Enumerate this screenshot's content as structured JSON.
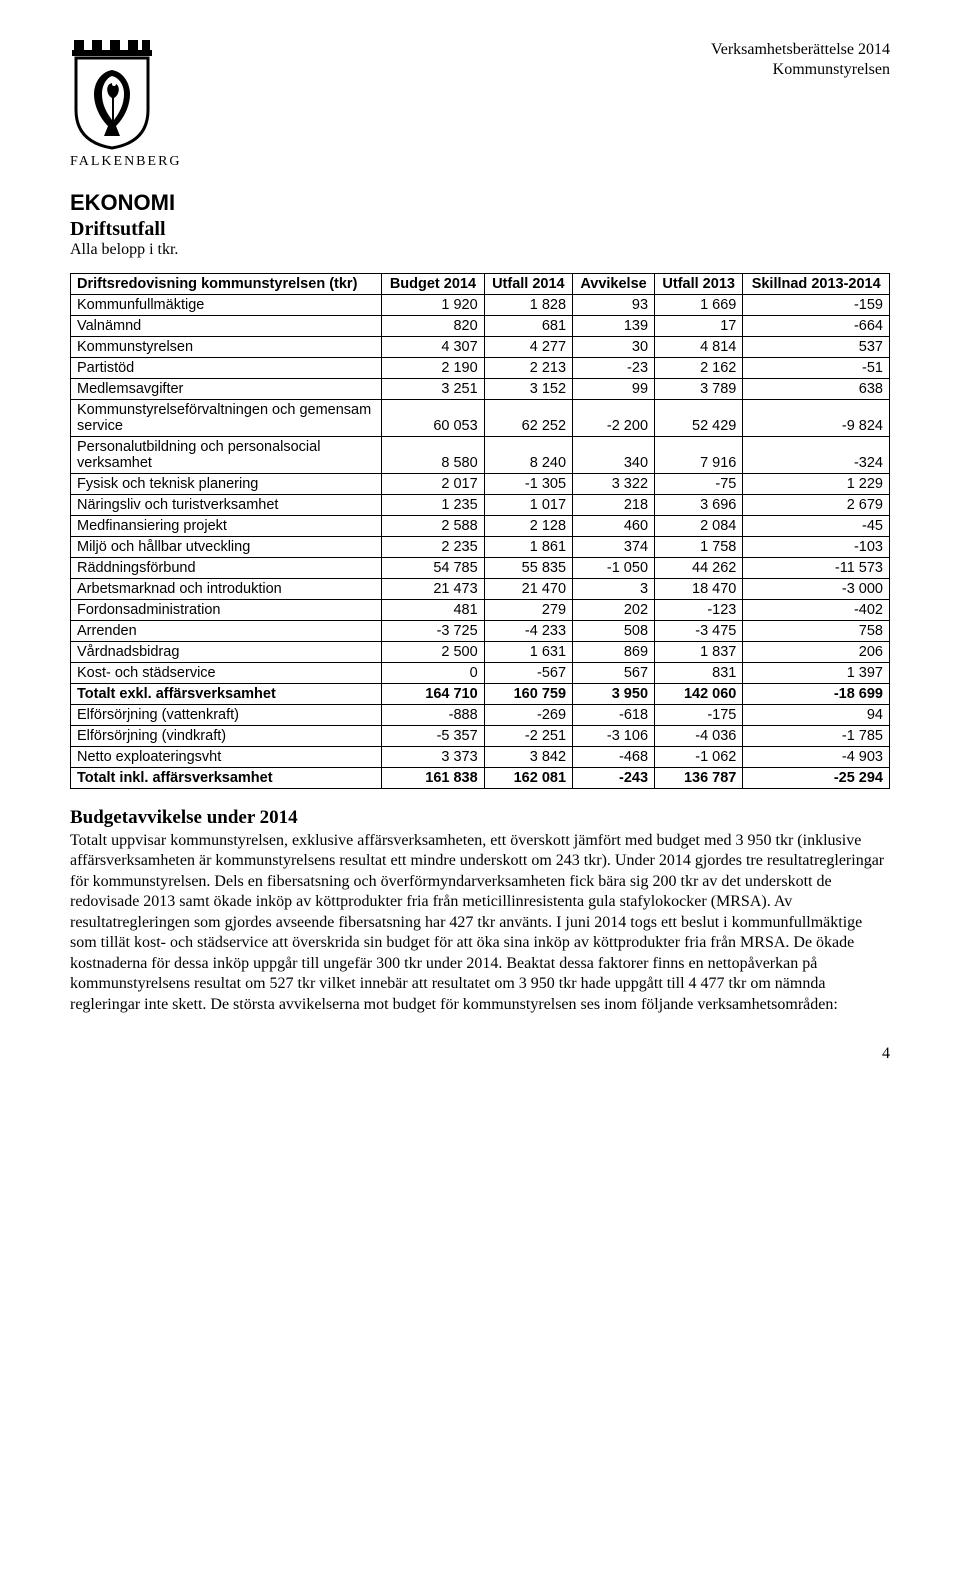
{
  "meta": {
    "doc_title_line1": "Verksamhetsberättelse 2014",
    "doc_title_line2": "Kommunstyrelsen",
    "brand": "FALKENBERG",
    "page_number": "4"
  },
  "headings": {
    "ekonomi": "EKONOMI",
    "driftsutfall": "Driftsutfall",
    "alla_belopp": "Alla belopp i tkr.",
    "budgetavvikelse": "Budgetavvikelse under 2014"
  },
  "table": {
    "header": {
      "c0": "Driftsredovisning kommunstyrelsen (tkr)",
      "c1": "Budget 2014",
      "c2": "Utfall 2014",
      "c3": "Avvikelse",
      "c4": "Utfall 2013",
      "c5": "Skillnad 2013-2014"
    },
    "rows": [
      {
        "label": "Kommunfullmäktige",
        "v": [
          "1 920",
          "1 828",
          "93",
          "1 669",
          "-159"
        ],
        "bold": false
      },
      {
        "label": "Valnämnd",
        "v": [
          "820",
          "681",
          "139",
          "17",
          "-664"
        ],
        "bold": false
      },
      {
        "label": "Kommunstyrelsen",
        "v": [
          "4 307",
          "4 277",
          "30",
          "4 814",
          "537"
        ],
        "bold": false
      },
      {
        "label": "Partistöd",
        "v": [
          "2 190",
          "2 213",
          "-23",
          "2 162",
          "-51"
        ],
        "bold": false
      },
      {
        "label": "Medlemsavgifter",
        "v": [
          "3 251",
          "3 152",
          "99",
          "3 789",
          "638"
        ],
        "bold": false
      },
      {
        "label": "Kommunstyrelseförvaltningen och gemensam service",
        "v": [
          "60 053",
          "62 252",
          "-2 200",
          "52 429",
          "-9 824"
        ],
        "bold": false
      },
      {
        "label": "Personalutbildning och personalsocial verksamhet",
        "v": [
          "8 580",
          "8 240",
          "340",
          "7 916",
          "-324"
        ],
        "bold": false
      },
      {
        "label": "Fysisk och teknisk planering",
        "v": [
          "2 017",
          "-1 305",
          "3 322",
          "-75",
          "1 229"
        ],
        "bold": false
      },
      {
        "label": "Näringsliv och turistverksamhet",
        "v": [
          "1 235",
          "1 017",
          "218",
          "3 696",
          "2 679"
        ],
        "bold": false
      },
      {
        "label": "Medfinansiering projekt",
        "v": [
          "2 588",
          "2 128",
          "460",
          "2 084",
          "-45"
        ],
        "bold": false
      },
      {
        "label": "Miljö och hållbar utveckling",
        "v": [
          "2 235",
          "1 861",
          "374",
          "1 758",
          "-103"
        ],
        "bold": false
      },
      {
        "label": "Räddningsförbund",
        "v": [
          "54 785",
          "55 835",
          "-1 050",
          "44 262",
          "-11 573"
        ],
        "bold": false
      },
      {
        "label": "Arbetsmarknad och introduktion",
        "v": [
          "21 473",
          "21 470",
          "3",
          "18 470",
          "-3 000"
        ],
        "bold": false
      },
      {
        "label": "Fordonsadministration",
        "v": [
          "481",
          "279",
          "202",
          "-123",
          "-402"
        ],
        "bold": false
      },
      {
        "label": "Arrenden",
        "v": [
          "-3 725",
          "-4 233",
          "508",
          "-3 475",
          "758"
        ],
        "bold": false
      },
      {
        "label": "Vårdnadsbidrag",
        "v": [
          "2 500",
          "1 631",
          "869",
          "1 837",
          "206"
        ],
        "bold": false
      },
      {
        "label": "Kost- och städservice",
        "v": [
          "0",
          "-567",
          "567",
          "831",
          "1 397"
        ],
        "bold": false
      },
      {
        "label": "Totalt exkl. affärsverksamhet",
        "v": [
          "164 710",
          "160 759",
          "3 950",
          "142 060",
          "-18 699"
        ],
        "bold": true
      },
      {
        "label": "Elförsörjning (vattenkraft)",
        "v": [
          "-888",
          "-269",
          "-618",
          "-175",
          "94"
        ],
        "bold": false
      },
      {
        "label": "Elförsörjning (vindkraft)",
        "v": [
          "-5 357",
          "-2 251",
          "-3 106",
          "-4 036",
          "-1 785"
        ],
        "bold": false
      },
      {
        "label": "Netto exploateringsvht",
        "v": [
          "3 373",
          "3 842",
          "-468",
          "-1 062",
          "-4 903"
        ],
        "bold": false
      },
      {
        "label": "Totalt inkl. affärsverksamhet",
        "v": [
          "161 838",
          "162 081",
          "-243",
          "136 787",
          "-25 294"
        ],
        "bold": true
      }
    ]
  },
  "paragraph": "Totalt uppvisar kommunstyrelsen, exklusive affärsverksamheten, ett överskott jämfört med budget med 3 950 tkr (inklusive affärsverksamheten är kommunstyrelsens resultat ett mindre underskott om 243 tkr). Under 2014 gjordes tre resultatregleringar för kommunstyrelsen. Dels en fibersatsning och överförmyndarverksamheten fick bära sig 200 tkr av det underskott de redovisade 2013 samt ökade inköp av köttprodukter fria från meticillinresistenta gula stafylokocker (MRSA). Av resultatregleringen som gjordes avseende fibersatsning har 427 tkr använts. I juni 2014 togs ett beslut i kommunfullmäktige som tillät kost- och städservice att överskrida sin budget för att öka sina inköp av köttprodukter fria från MRSA. De ökade kostnaderna för dessa inköp uppgår till ungefär 300 tkr under 2014. Beaktat dessa faktorer finns en nettopåverkan på kommunstyrelsens resultat om 527 tkr vilket innebär att resultatet om 3 950 tkr hade uppgått till 4 477 tkr om nämnda regleringar inte skett. De största avvikelserna mot budget för kommunstyrelsen ses inom följande verksamhetsområden:"
}
